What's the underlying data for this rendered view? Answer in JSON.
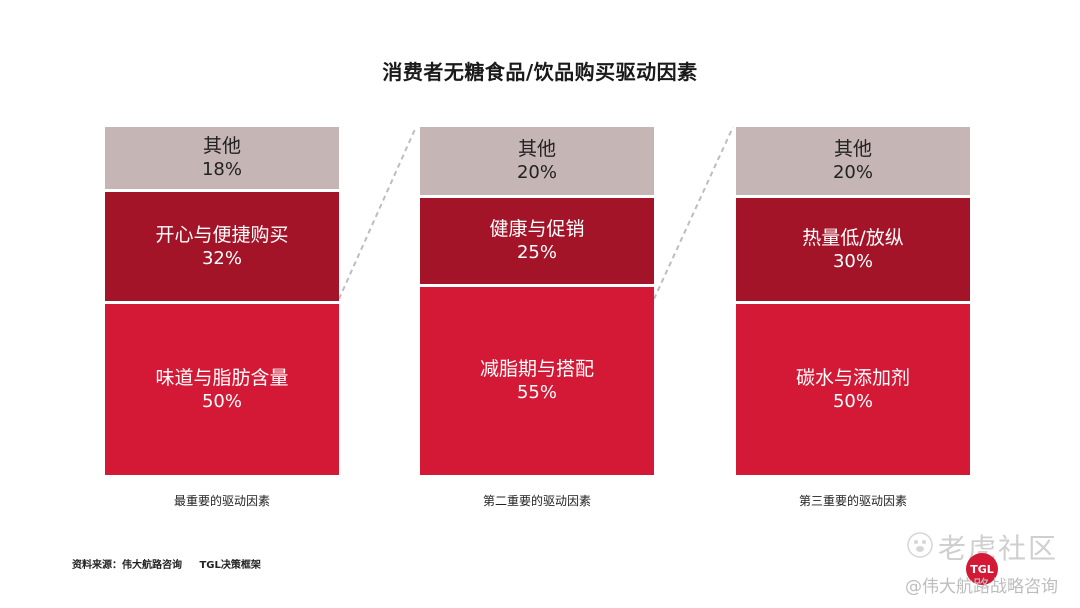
{
  "chart_data": {
    "type": "bar",
    "title": "消费者无糖食品/饮品购买驱动因素",
    "categories": [
      "最重要的驱动因素",
      "第二重要的驱动因素",
      "第三重要的驱动因素"
    ],
    "columns": [
      {
        "caption": "最重要的驱动因素",
        "segments": [
          {
            "label": "其他",
            "value": 18,
            "text": "18%"
          },
          {
            "label": "开心与便捷购买",
            "value": 32,
            "text": "32%"
          },
          {
            "label": "味道与脂肪含量",
            "value": 50,
            "text": "50%"
          }
        ]
      },
      {
        "caption": "第二重要的驱动因素",
        "segments": [
          {
            "label": "其他",
            "value": 20,
            "text": "20%"
          },
          {
            "label": "健康与促销",
            "value": 25,
            "text": "25%"
          },
          {
            "label": "减脂期与搭配",
            "value": 55,
            "text": "55%"
          }
        ]
      },
      {
        "caption": "第三重要的驱动因素",
        "segments": [
          {
            "label": "其他",
            "value": 20,
            "text": "20%"
          },
          {
            "label": "热量低/放纵",
            "value": 30,
            "text": "30%"
          },
          {
            "label": "碳水与添加剂",
            "value": 50,
            "text": "50%"
          }
        ]
      }
    ],
    "ylim": [
      0,
      100
    ],
    "colors": {
      "other": "#c6b5b5",
      "second": "#a31428",
      "first": "#d31936"
    }
  },
  "footer": {
    "source_label": "资料来源：伟大航路咨询",
    "source_extra": "TGL决策框架"
  },
  "watermark": {
    "main": "老虎社区",
    "sub": "@伟大航路战略咨询",
    "logo": "TGL"
  }
}
